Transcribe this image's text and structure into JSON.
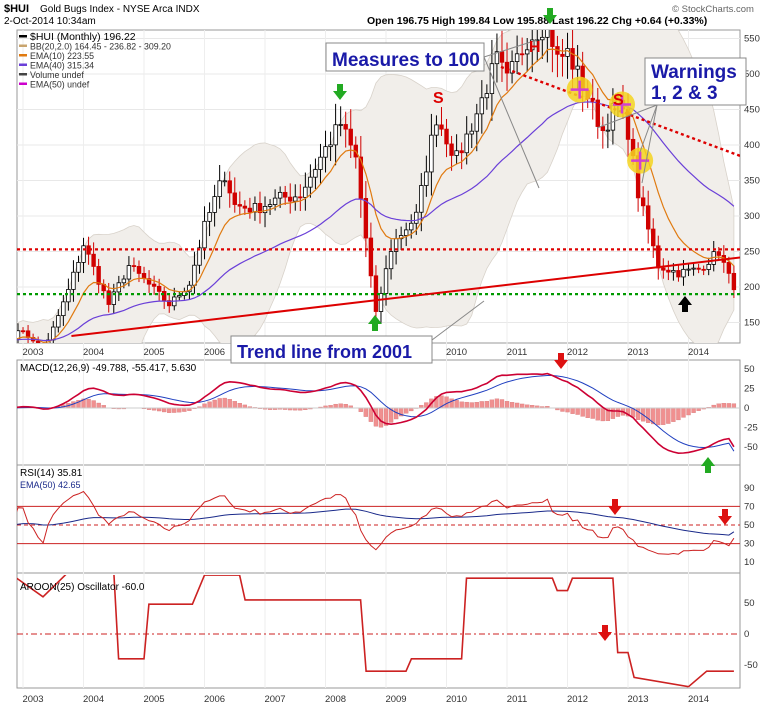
{
  "header": {
    "symbol": "$HUI",
    "name": "Gold Bugs Index - NYSE Arca INDX",
    "date": "2-Oct-2014 10:34am",
    "quote": "Open 196.75  High 199.84  Low 195.88  Last 196.22  Chg +0.64 (+0.33%)",
    "credit": "© StockCharts.com"
  },
  "legend": [
    {
      "text": "$HUI (Monthly) 196.22",
      "color": "#000000"
    },
    {
      "text": "BB(20,2.0) 164.45 - 236.82 - 309.20",
      "color": "#c8a46e"
    },
    {
      "text": "EMA(10) 223.55",
      "color": "#e07a10"
    },
    {
      "text": "EMA(40) 315.34",
      "color": "#6a3fd8"
    },
    {
      "text": "Volume undef",
      "color": "#444444"
    },
    {
      "text": "EMA(50) undef",
      "color": "#cc00cc"
    }
  ],
  "annotations": {
    "measures": "Measures to 100",
    "warnings_1": "Warnings",
    "warnings_2": "1, 2 & 3",
    "trend": "Trend line from 2001",
    "head": "H",
    "shoulder_left": "S",
    "shoulder_right": "S"
  },
  "panels": {
    "macd_label": "MACD(12,26,9) -49.788, -55.417, 5.630",
    "rsi_label": "RSI(14) 35.81",
    "rsi_ema_label": "EMA(50) 42.65",
    "aroon_label": "AROON(25) Oscillator -60.0"
  },
  "colors": {
    "up": "#000000",
    "down": "#d00000",
    "bb_fill": "#f1eeea",
    "ema10": "#e07a10",
    "ema40": "#6a3fd8",
    "macd": "#cc0033",
    "signal": "#2040c0",
    "hist": "#f09090",
    "annotation_blue": "#1a1aa8"
  },
  "chart_data": [
    {
      "type": "candlestick",
      "title": "$HUI (Monthly)",
      "x_ticks": [
        "2003",
        "2004",
        "2005",
        "2006",
        "2007",
        "2008",
        "2009",
        "2010",
        "2011",
        "2012",
        "2013",
        "2014"
      ],
      "y_ticks": [
        150,
        200,
        250,
        300,
        350,
        400,
        450,
        500,
        550
      ],
      "horizontal_levels": [
        {
          "value": 190,
          "color": "#009900",
          "style": "dotted"
        },
        {
          "value": 253,
          "color": "#dd0000",
          "style": "dotted"
        }
      ],
      "trend_lines": [
        {
          "from": [
            "2003.8",
            131
          ],
          "to": [
            "2015.0",
            243
          ],
          "color": "#dd0000"
        },
        {
          "from": [
            "2010.9",
            510
          ],
          "to": [
            "2015.0",
            380
          ],
          "color": "#dd0000",
          "style": "dotted"
        }
      ],
      "anchors": [
        [
          "2002.75",
          125
        ],
        [
          "2003.0",
          140
        ],
        [
          "2003.33",
          105
        ],
        [
          "2003.75",
          195
        ],
        [
          "2004.0",
          260
        ],
        [
          "2004.42",
          175
        ],
        [
          "2004.75",
          230
        ],
        [
          "2005.0",
          210
        ],
        [
          "2005.42",
          175
        ],
        [
          "2005.75",
          205
        ],
        [
          "2006.0",
          285
        ],
        [
          "2006.33",
          360
        ],
        [
          "2006.5",
          315
        ],
        [
          "2006.83",
          310
        ],
        [
          "2007.25",
          325
        ],
        [
          "2007.58",
          330
        ],
        [
          "2008.0",
          395
        ],
        [
          "2008.25",
          430
        ],
        [
          "2008.5",
          380
        ],
        [
          "2008.83",
          160
        ],
        [
          "2009.1",
          260
        ],
        [
          "2009.5",
          300
        ],
        [
          "2009.83",
          440
        ],
        [
          "2010.17",
          380
        ],
        [
          "2010.5",
          445
        ],
        [
          "2010.83",
          520
        ],
        [
          "2011.0",
          490
        ],
        [
          "2011.33",
          550
        ],
        [
          "2011.67",
          575
        ],
        [
          "2011.83",
          520
        ],
        [
          "2012.0",
          530
        ],
        [
          "2012.33",
          470
        ],
        [
          "2012.58",
          420
        ],
        [
          "2012.83",
          460
        ],
        [
          "2013.0",
          420
        ],
        [
          "2013.17",
          330
        ],
        [
          "2013.5",
          230
        ],
        [
          "2013.83",
          220
        ],
        [
          "2014.17",
          225
        ],
        [
          "2014.5",
          250
        ],
        [
          "2014.75",
          196.22
        ]
      ]
    },
    {
      "type": "line",
      "title": "MACD(12,26,9)",
      "series": [
        {
          "name": "MACD",
          "values_latest": -49.788
        },
        {
          "name": "Signal",
          "values_latest": -55.417
        },
        {
          "name": "Histogram",
          "values_latest": 5.63
        }
      ],
      "y_ticks": [
        50,
        25,
        0,
        -25,
        -50
      ]
    },
    {
      "type": "line",
      "title": "RSI(14)",
      "series": [
        {
          "name": "RSI(14)",
          "values_latest": 35.81
        },
        {
          "name": "EMA(50)",
          "values_latest": 42.65
        }
      ],
      "y_ticks": [
        90,
        70,
        50,
        30,
        10
      ],
      "levels": [
        70,
        50,
        30
      ]
    },
    {
      "type": "line",
      "title": "AROON(25) Oscillator",
      "series": [
        {
          "name": "AROON(25)",
          "values_latest": -60.0
        }
      ],
      "y_ticks": [
        50,
        0,
        -50
      ],
      "anchors": [
        [
          "2002.75",
          100
        ],
        [
          "2003.33",
          60
        ],
        [
          "2003.75",
          100
        ],
        [
          "2004.5",
          100
        ],
        [
          "2004.58",
          -40
        ],
        [
          "2005.0",
          -40
        ],
        [
          "2005.08",
          48
        ],
        [
          "2005.8",
          48
        ],
        [
          "2006.0",
          95
        ],
        [
          "2006.58",
          95
        ],
        [
          "2006.67",
          55
        ],
        [
          "2008.58",
          55
        ],
        [
          "2008.67",
          -60
        ],
        [
          "2009.33",
          -60
        ],
        [
          "2009.42",
          -40
        ],
        [
          "2010.25",
          -40
        ],
        [
          "2010.33",
          90
        ],
        [
          "2011.75",
          90
        ],
        [
          "2011.83",
          70
        ],
        [
          "2012.0",
          70
        ],
        [
          "2012.08",
          90
        ],
        [
          "2012.75",
          90
        ],
        [
          "2012.83",
          -30
        ],
        [
          "2013.0",
          -30
        ],
        [
          "2013.1",
          -70
        ],
        [
          "2014.0",
          -85
        ],
        [
          "2014.3",
          -60
        ],
        [
          "2014.75",
          -60
        ]
      ]
    }
  ]
}
